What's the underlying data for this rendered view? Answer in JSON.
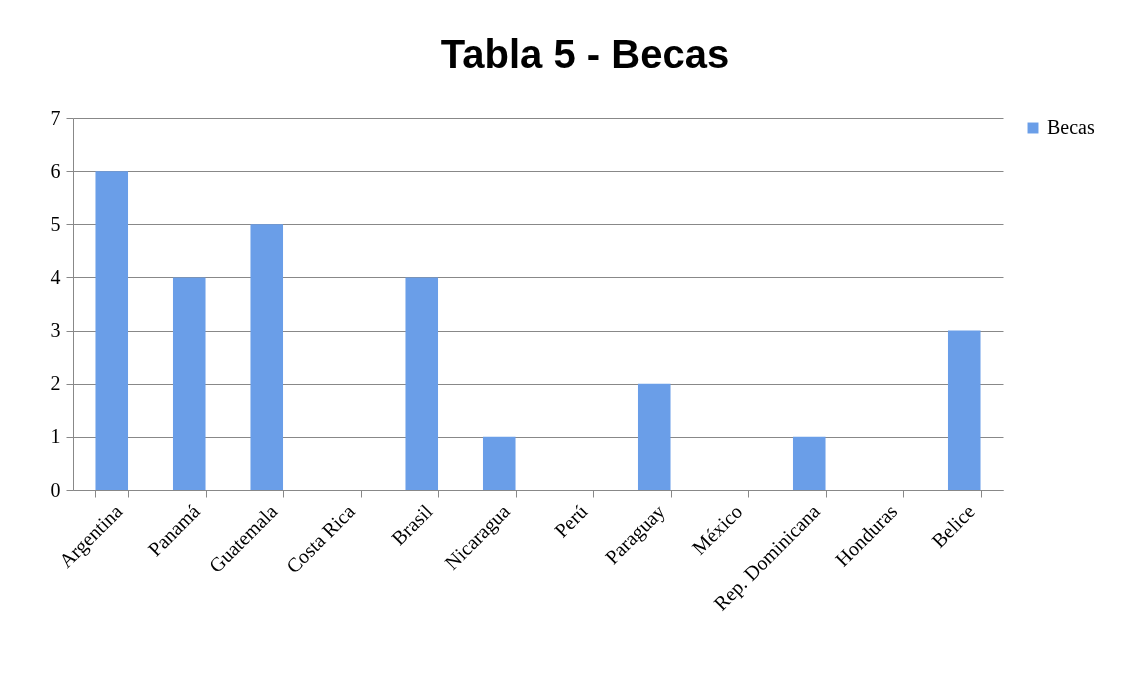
{
  "chart_data": {
    "type": "bar",
    "title": "Tabla 5 - Becas",
    "categories": [
      "Argentina",
      "Panamá",
      "Guatemala",
      "Costa Rica",
      "Brasil",
      "Nicaragua",
      "Perú",
      "Paraguay",
      "México",
      "Rep. Dominicana",
      "Honduras",
      "Belice"
    ],
    "series": [
      {
        "name": "Becas",
        "color": "#6a9ee8",
        "values": [
          6,
          4,
          5,
          0,
          4,
          1,
          0,
          2,
          0,
          1,
          0,
          3
        ]
      }
    ],
    "ylim": [
      0,
      7
    ],
    "yticks": [
      0,
      1,
      2,
      3,
      4,
      5,
      6,
      7
    ],
    "grid": "y",
    "legend": "right"
  }
}
